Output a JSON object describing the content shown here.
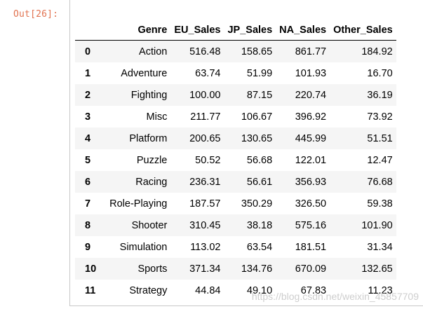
{
  "prompt": "Out[26]:",
  "table": {
    "index_header": "",
    "columns": [
      "Genre",
      "EU_Sales",
      "JP_Sales",
      "NA_Sales",
      "Other_Sales"
    ],
    "rows": [
      {
        "index": "0",
        "cells": [
          "Action",
          "516.48",
          "158.65",
          "861.77",
          "184.92"
        ]
      },
      {
        "index": "1",
        "cells": [
          "Adventure",
          "63.74",
          "51.99",
          "101.93",
          "16.70"
        ]
      },
      {
        "index": "2",
        "cells": [
          "Fighting",
          "100.00",
          "87.15",
          "220.74",
          "36.19"
        ]
      },
      {
        "index": "3",
        "cells": [
          "Misc",
          "211.77",
          "106.67",
          "396.92",
          "73.92"
        ]
      },
      {
        "index": "4",
        "cells": [
          "Platform",
          "200.65",
          "130.65",
          "445.99",
          "51.51"
        ]
      },
      {
        "index": "5",
        "cells": [
          "Puzzle",
          "50.52",
          "56.68",
          "122.01",
          "12.47"
        ]
      },
      {
        "index": "6",
        "cells": [
          "Racing",
          "236.31",
          "56.61",
          "356.93",
          "76.68"
        ]
      },
      {
        "index": "7",
        "cells": [
          "Role-Playing",
          "187.57",
          "350.29",
          "326.50",
          "59.38"
        ]
      },
      {
        "index": "8",
        "cells": [
          "Shooter",
          "310.45",
          "38.18",
          "575.16",
          "101.90"
        ]
      },
      {
        "index": "9",
        "cells": [
          "Simulation",
          "113.02",
          "63.54",
          "181.51",
          "31.34"
        ]
      },
      {
        "index": "10",
        "cells": [
          "Sports",
          "371.34",
          "134.76",
          "670.09",
          "132.65"
        ]
      },
      {
        "index": "11",
        "cells": [
          "Strategy",
          "44.84",
          "49.10",
          "67.83",
          "11.23"
        ]
      }
    ]
  },
  "watermark": "https://blog.csdn.net/weixin_45857709",
  "colors": {
    "prompt": "#d84315",
    "stripe": "#f5f5f5",
    "border": "#000000"
  }
}
